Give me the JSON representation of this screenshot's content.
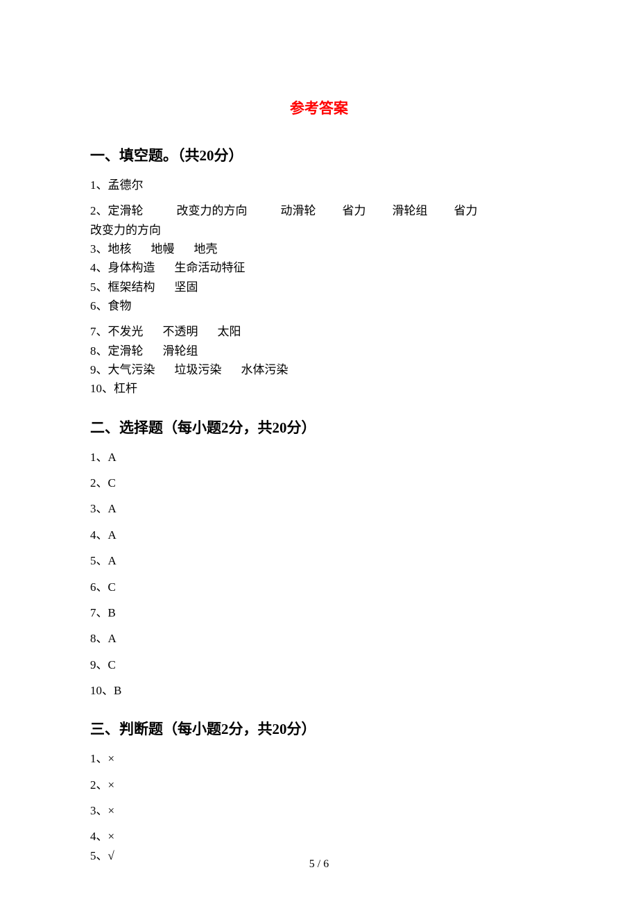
{
  "title": "参考答案",
  "section1": {
    "header": "一、填空题。（共20分）",
    "items": {
      "i1": "1、孟德尔",
      "i2a": "2、定滑轮",
      "i2b": "改变力的方向",
      "i2c": "动滑轮",
      "i2d": "省力",
      "i2e": "滑轮组",
      "i2f": "省力",
      "i2g": "改变力的方向",
      "i3a": "3、地核",
      "i3b": "地幔",
      "i3c": "地壳",
      "i4a": "4、身体构造",
      "i4b": "生命活动特征",
      "i5a": "5、框架结构",
      "i5b": "坚固",
      "i6": "6、食物",
      "i7a": "7、不发光",
      "i7b": "不透明",
      "i7c": "太阳",
      "i8a": "8、定滑轮",
      "i8b": "滑轮组",
      "i9a": "9、大气污染",
      "i9b": "垃圾污染",
      "i9c": "水体污染",
      "i10": "10、杠杆"
    }
  },
  "section2": {
    "header": "二、选择题（每小题2分，共20分）",
    "items": {
      "i1": "1、A",
      "i2": "2、C",
      "i3": "3、A",
      "i4": "4、A",
      "i5": "5、A",
      "i6": "6、C",
      "i7": "7、B",
      "i8": "8、A",
      "i9": "9、C",
      "i10": "10、B"
    }
  },
  "section3": {
    "header": "三、判断题（每小题2分，共20分）",
    "items": {
      "i1": "1、×",
      "i2": "2、×",
      "i3": "3、×",
      "i4": "4、×",
      "i5": "5、√"
    }
  },
  "footer": "5 / 6",
  "colors": {
    "title_color": "#ff0000",
    "text_color": "#000000",
    "background": "#ffffff"
  },
  "typography": {
    "title_fontsize": 21,
    "header_fontsize": 21,
    "body_fontsize": 17,
    "footer_fontsize": 16,
    "font_family": "SimSun"
  }
}
